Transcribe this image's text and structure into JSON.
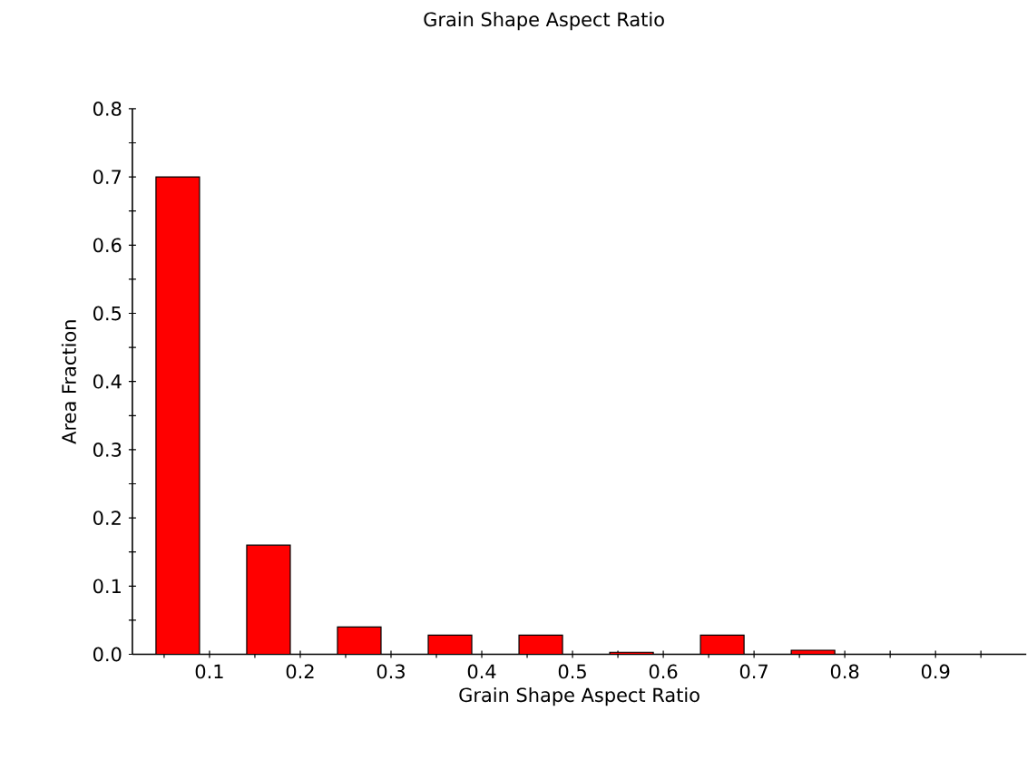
{
  "chart_data": {
    "type": "bar",
    "title": "Grain Shape Aspect Ratio",
    "xlabel": "Grain Shape Aspect Ratio",
    "ylabel": "Area Fraction",
    "x": [
      0.065,
      0.165,
      0.265,
      0.365,
      0.465,
      0.565,
      0.665,
      0.765
    ],
    "values": [
      0.7,
      0.16,
      0.04,
      0.028,
      0.028,
      0.003,
      0.028,
      0.006
    ],
    "color": "#ff0000",
    "xlim": [
      0.015,
      1.0
    ],
    "xticks": [
      {
        "value": 0.05,
        "label": null
      },
      0.1,
      {
        "value": 0.15,
        "label": null
      },
      0.2,
      {
        "value": 0.25,
        "label": null
      },
      0.3,
      {
        "value": 0.35,
        "label": null
      },
      0.4,
      {
        "value": 0.45,
        "label": null
      },
      0.5,
      {
        "value": 0.55,
        "label": null
      },
      0.6,
      {
        "value": 0.65,
        "label": null
      },
      0.7,
      {
        "value": 0.75,
        "label": null
      },
      0.8,
      {
        "value": 0.85,
        "label": null
      },
      0.9,
      {
        "value": 0.95,
        "label": null
      }
    ],
    "ylim": [
      0.0,
      0.8
    ],
    "yticks": [
      "0.0",
      {
        "value": 0.05,
        "label": null
      },
      0.1,
      {
        "value": 0.15,
        "label": null
      },
      0.2,
      {
        "value": 0.25,
        "label": null
      },
      0.3,
      {
        "value": 0.35,
        "label": null
      },
      0.4,
      {
        "value": 0.45,
        "label": null
      },
      0.5,
      {
        "value": 0.55,
        "label": null
      },
      0.6,
      {
        "value": 0.65,
        "label": null
      },
      0.7,
      {
        "value": 0.75,
        "label": null
      },
      0.8
    ],
    "grid": false
  }
}
